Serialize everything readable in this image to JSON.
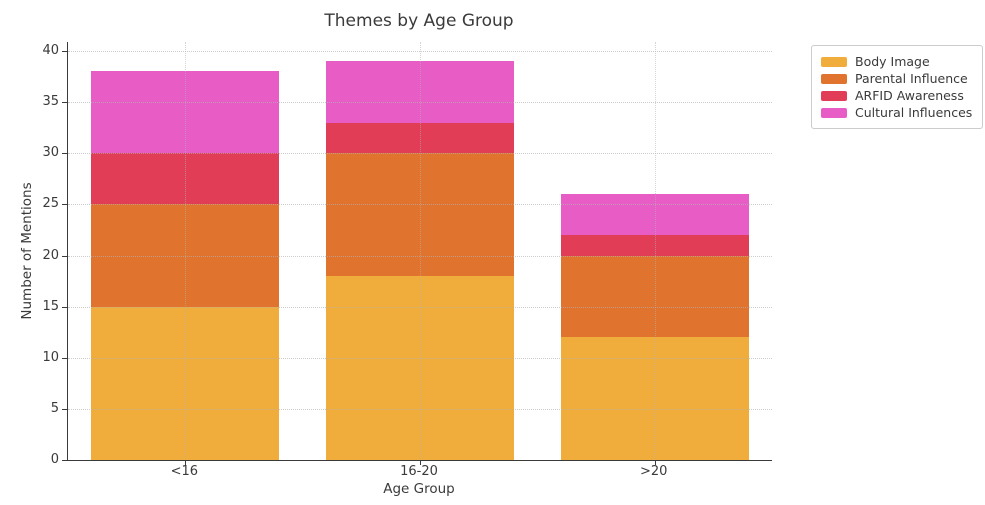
{
  "chart_data": {
    "type": "bar",
    "stacked": true,
    "title": "Themes by Age Group",
    "xlabel": "Age Group",
    "ylabel": "Number of Mentions",
    "categories": [
      "<16",
      "16-20",
      ">20"
    ],
    "series": [
      {
        "name": "Body Image",
        "color": "#F1AD3C",
        "values": [
          15,
          18,
          12
        ]
      },
      {
        "name": "Parental Influence",
        "color": "#E0742E",
        "values": [
          10,
          12,
          8
        ]
      },
      {
        "name": "ARFID Awareness",
        "color": "#E23D56",
        "values": [
          5,
          3,
          2
        ]
      },
      {
        "name": "Cultural Influences",
        "color": "#E85CC5",
        "values": [
          8,
          6,
          4
        ]
      }
    ],
    "ylim": [
      0,
      40
    ],
    "yticks": [
      0,
      5,
      10,
      15,
      20,
      25,
      30,
      35,
      40
    ],
    "grid": true,
    "grid_style": "dotted",
    "legend_position": "upper-right-outside",
    "colors": {
      "text": "#3a3a3a",
      "axis": "#3a3a3a",
      "grid": "#c9c9c9",
      "background": "#ffffff"
    }
  }
}
